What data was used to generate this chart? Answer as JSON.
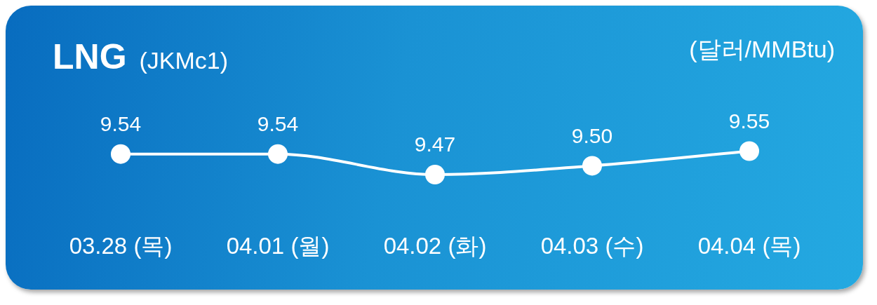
{
  "chart_data": {
    "type": "line",
    "title": "LNG",
    "subtitle": "(JKMc1)",
    "ylabel": "(달러/MMBtu)",
    "categories": [
      "03.28 (목)",
      "04.01 (월)",
      "04.02 (화)",
      "04.03 (수)",
      "04.04 (목)"
    ],
    "series": [
      {
        "color": "#ffffff",
        "values": [
          9.54,
          9.54,
          9.47,
          9.5,
          9.55
        ],
        "value_labels": [
          "9.54",
          "9.54",
          "9.47",
          "9.50",
          "9.55"
        ]
      }
    ],
    "marker": "circle",
    "line_style": "solid",
    "grid": false,
    "legend": false,
    "tick_labels": "x"
  }
}
